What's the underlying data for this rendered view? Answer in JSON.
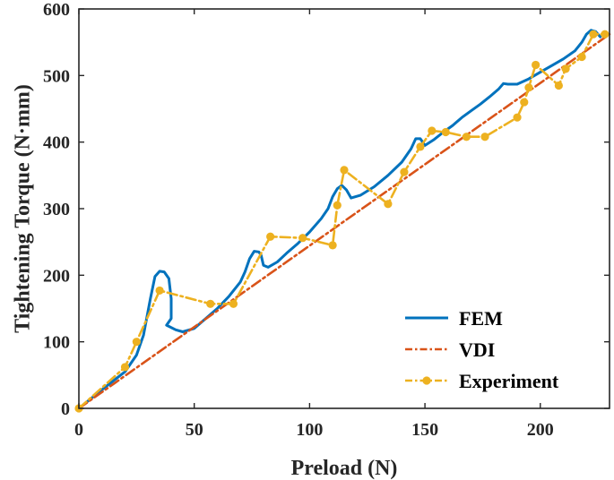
{
  "chart_data": {
    "type": "line",
    "title": "",
    "xlabel": "Preload (N)",
    "ylabel": "Tightening Torque (N·mm)",
    "xlim": [
      0,
      230
    ],
    "ylim": [
      0,
      600
    ],
    "xticks": [
      0,
      50,
      100,
      150,
      200
    ],
    "yticks": [
      0,
      100,
      200,
      300,
      400,
      500,
      600
    ],
    "grid": false,
    "legend_position": "bottom-right",
    "series": [
      {
        "name": "FEM",
        "color": "#0072BD",
        "style": "solid",
        "marker": "none",
        "x": [
          0,
          10,
          20,
          25,
          28,
          31,
          33,
          35,
          37,
          39,
          40,
          40,
          38,
          42,
          45,
          50,
          55,
          60,
          65,
          70,
          72,
          74,
          76,
          78,
          79,
          80,
          82,
          86,
          90,
          95,
          100,
          105,
          108,
          110,
          112,
          114,
          116,
          118,
          122,
          128,
          134,
          140,
          144,
          146,
          148,
          150,
          154,
          158,
          162,
          166,
          170,
          174,
          178,
          182,
          184,
          186,
          190,
          195,
          200,
          205,
          210,
          215,
          218,
          220,
          222,
          224,
          226
        ],
        "y": [
          0,
          28,
          55,
          80,
          110,
          165,
          198,
          206,
          205,
          195,
          165,
          135,
          125,
          118,
          115,
          120,
          135,
          150,
          168,
          190,
          205,
          225,
          236,
          235,
          230,
          215,
          212,
          220,
          233,
          248,
          265,
          285,
          300,
          318,
          330,
          335,
          328,
          316,
          320,
          333,
          350,
          370,
          390,
          405,
          405,
          395,
          404,
          415,
          425,
          437,
          447,
          457,
          468,
          480,
          488,
          487,
          487,
          495,
          505,
          515,
          525,
          537,
          550,
          562,
          568,
          566,
          558
        ]
      },
      {
        "name": "VDI",
        "color": "#D95319",
        "style": "dashdot",
        "marker": "none",
        "x": [
          0,
          230
        ],
        "y": [
          0,
          562
        ]
      },
      {
        "name": "Experiment",
        "color": "#EDB120",
        "style": "dashdot",
        "marker": "circle",
        "x": [
          0,
          20,
          25,
          35,
          57,
          67,
          83,
          97,
          110,
          112,
          115,
          134,
          141,
          148,
          153,
          159,
          168,
          176,
          190,
          193,
          195,
          198,
          208,
          211,
          218,
          223,
          228
        ],
        "y": [
          0,
          62,
          100,
          177,
          157,
          157,
          258,
          256,
          245,
          305,
          358,
          307,
          355,
          393,
          417,
          415,
          408,
          408,
          437,
          460,
          482,
          516,
          485,
          510,
          528,
          562,
          562
        ]
      }
    ]
  }
}
